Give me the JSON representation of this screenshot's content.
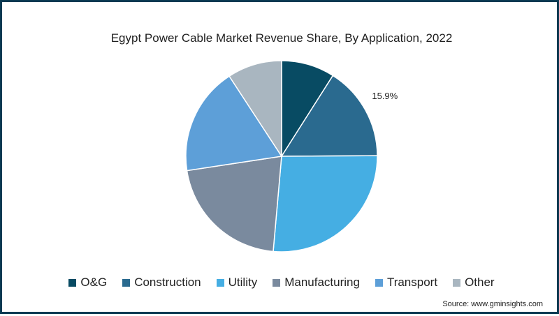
{
  "chart_data": {
    "type": "pie",
    "title": "Egypt Power Cable Market Revenue Share, By Application, 2022",
    "slices": [
      {
        "name": "O&G",
        "value": 9.0,
        "color": "#084b63"
      },
      {
        "name": "Construction",
        "value": 15.9,
        "color": "#2a6a8f",
        "label": "15.9%"
      },
      {
        "name": "Utility",
        "value": 26.5,
        "color": "#45aee3"
      },
      {
        "name": "Manufacturing",
        "value": 21.2,
        "color": "#7a8a9e"
      },
      {
        "name": "Transport",
        "value": 18.2,
        "color": "#5d9fd8"
      },
      {
        "name": "Other",
        "value": 9.2,
        "color": "#a9b6c0"
      }
    ],
    "legend_position": "bottom"
  },
  "source": "Source: www.gminsights.com"
}
